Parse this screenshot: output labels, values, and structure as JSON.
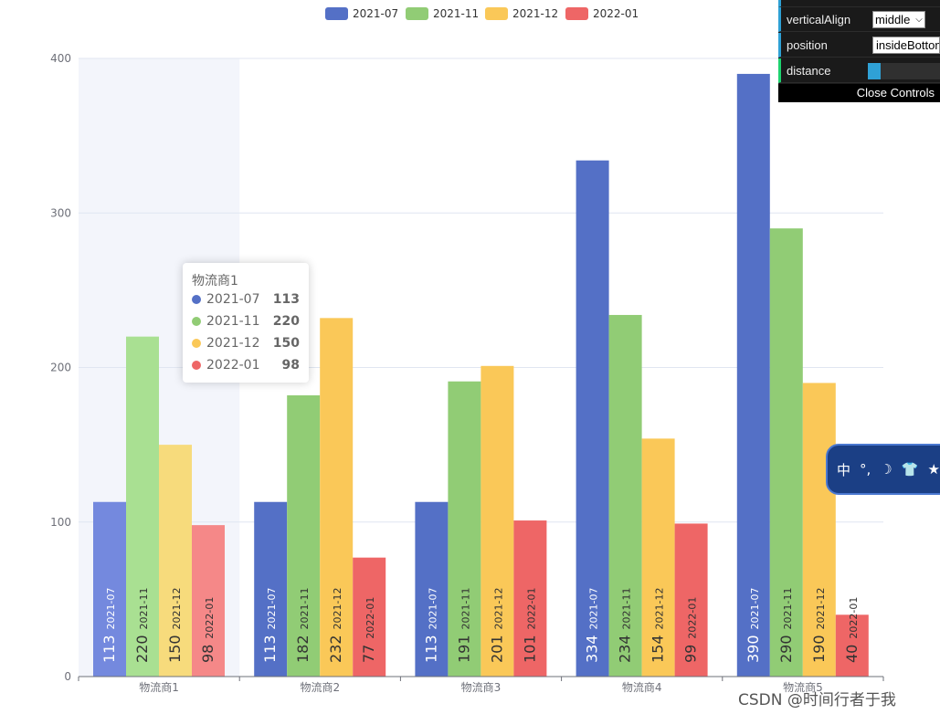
{
  "chart_data": {
    "type": "bar",
    "categories": [
      "物流商1",
      "物流商2",
      "物流商3",
      "物流商4",
      "物流商5"
    ],
    "series": [
      {
        "name": "2021-07",
        "color": "#5470c6",
        "values": [
          113,
          113,
          113,
          334,
          390
        ]
      },
      {
        "name": "2021-11",
        "color": "#91cc75",
        "values": [
          220,
          182,
          191,
          234,
          290
        ]
      },
      {
        "name": "2021-12",
        "color": "#fac858",
        "values": [
          150,
          232,
          201,
          154,
          190
        ]
      },
      {
        "name": "2022-01",
        "color": "#ee6666",
        "values": [
          98,
          77,
          101,
          99,
          40
        ]
      }
    ],
    "ylim": [
      0,
      400
    ],
    "yticks": [
      0,
      100,
      200,
      300,
      400
    ],
    "legend_position": "top-center",
    "highlighted_category": "物流商1"
  },
  "tooltip": {
    "title": "物流商1",
    "rows": [
      {
        "name": "2021-07",
        "value": "113",
        "color": "#5470c6"
      },
      {
        "name": "2021-11",
        "value": "220",
        "color": "#91cc75"
      },
      {
        "name": "2021-12",
        "value": "150",
        "color": "#fac858"
      },
      {
        "name": "2022-01",
        "value": "98",
        "color": "#ee6666"
      }
    ]
  },
  "controls": {
    "rows": [
      {
        "label": "verticalAlign",
        "value": "middle",
        "kind": "select"
      },
      {
        "label": "position",
        "value": "insideBottom",
        "kind": "select"
      },
      {
        "label": "distance",
        "kind": "slider",
        "fraction": 0.18
      }
    ],
    "close_label": "Close Controls"
  },
  "ime": {
    "items": [
      "中",
      "°,",
      "☽",
      "👕",
      "★"
    ]
  },
  "watermark": "CSDN @时间行者于我"
}
